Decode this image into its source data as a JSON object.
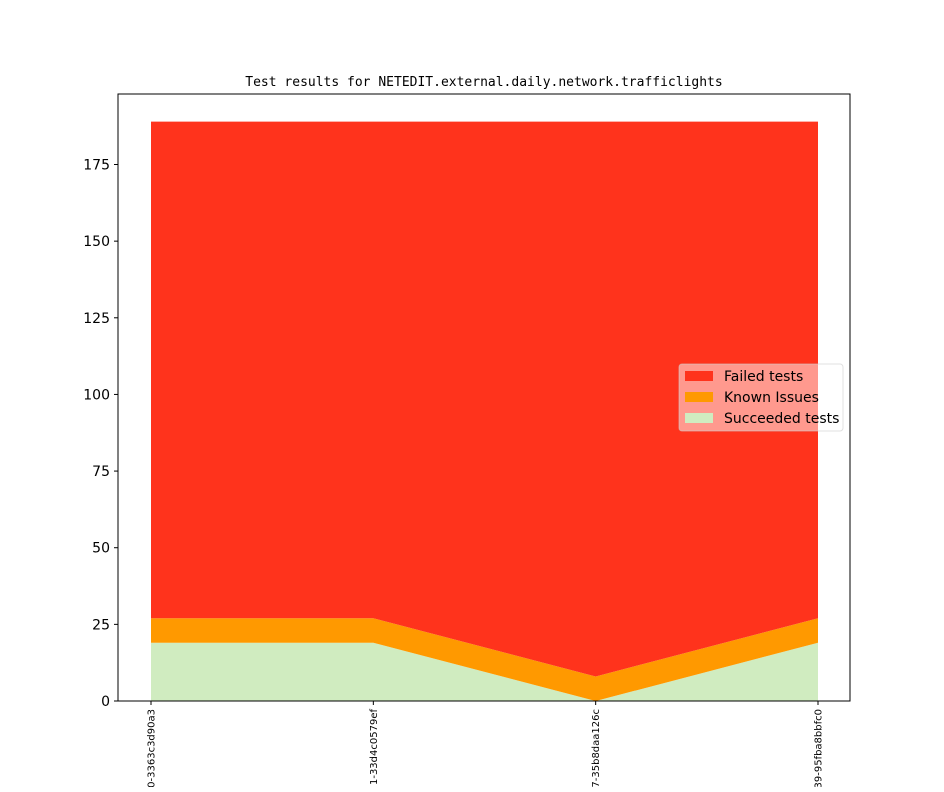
{
  "chart_data": {
    "type": "area",
    "stacked": true,
    "title": "Test results for NETEDIT.external.daily.network.trafficlights",
    "xlabel": "",
    "ylabel": "",
    "categories": [
      "0-3363c3d90a3",
      "1-33d4c0579ef",
      "7-35b8daa126c",
      "39-95fba8bbfc0"
    ],
    "y_ticks": [
      0,
      25,
      50,
      75,
      100,
      125,
      150,
      175
    ],
    "ylim": [
      0,
      198
    ],
    "grid": false,
    "legend_position": "center-right",
    "legend_order": [
      "Failed tests",
      "Known Issues",
      "Succeeded tests"
    ],
    "series": [
      {
        "name": "Succeeded tests",
        "color": "#d0ecc0",
        "values": [
          19,
          19,
          0,
          19
        ]
      },
      {
        "name": "Known Issues",
        "color": "#ff9900",
        "values": [
          8,
          8,
          8,
          8
        ]
      },
      {
        "name": "Failed tests",
        "color": "#ff331c",
        "values": [
          162,
          162,
          181,
          162
        ]
      }
    ]
  }
}
